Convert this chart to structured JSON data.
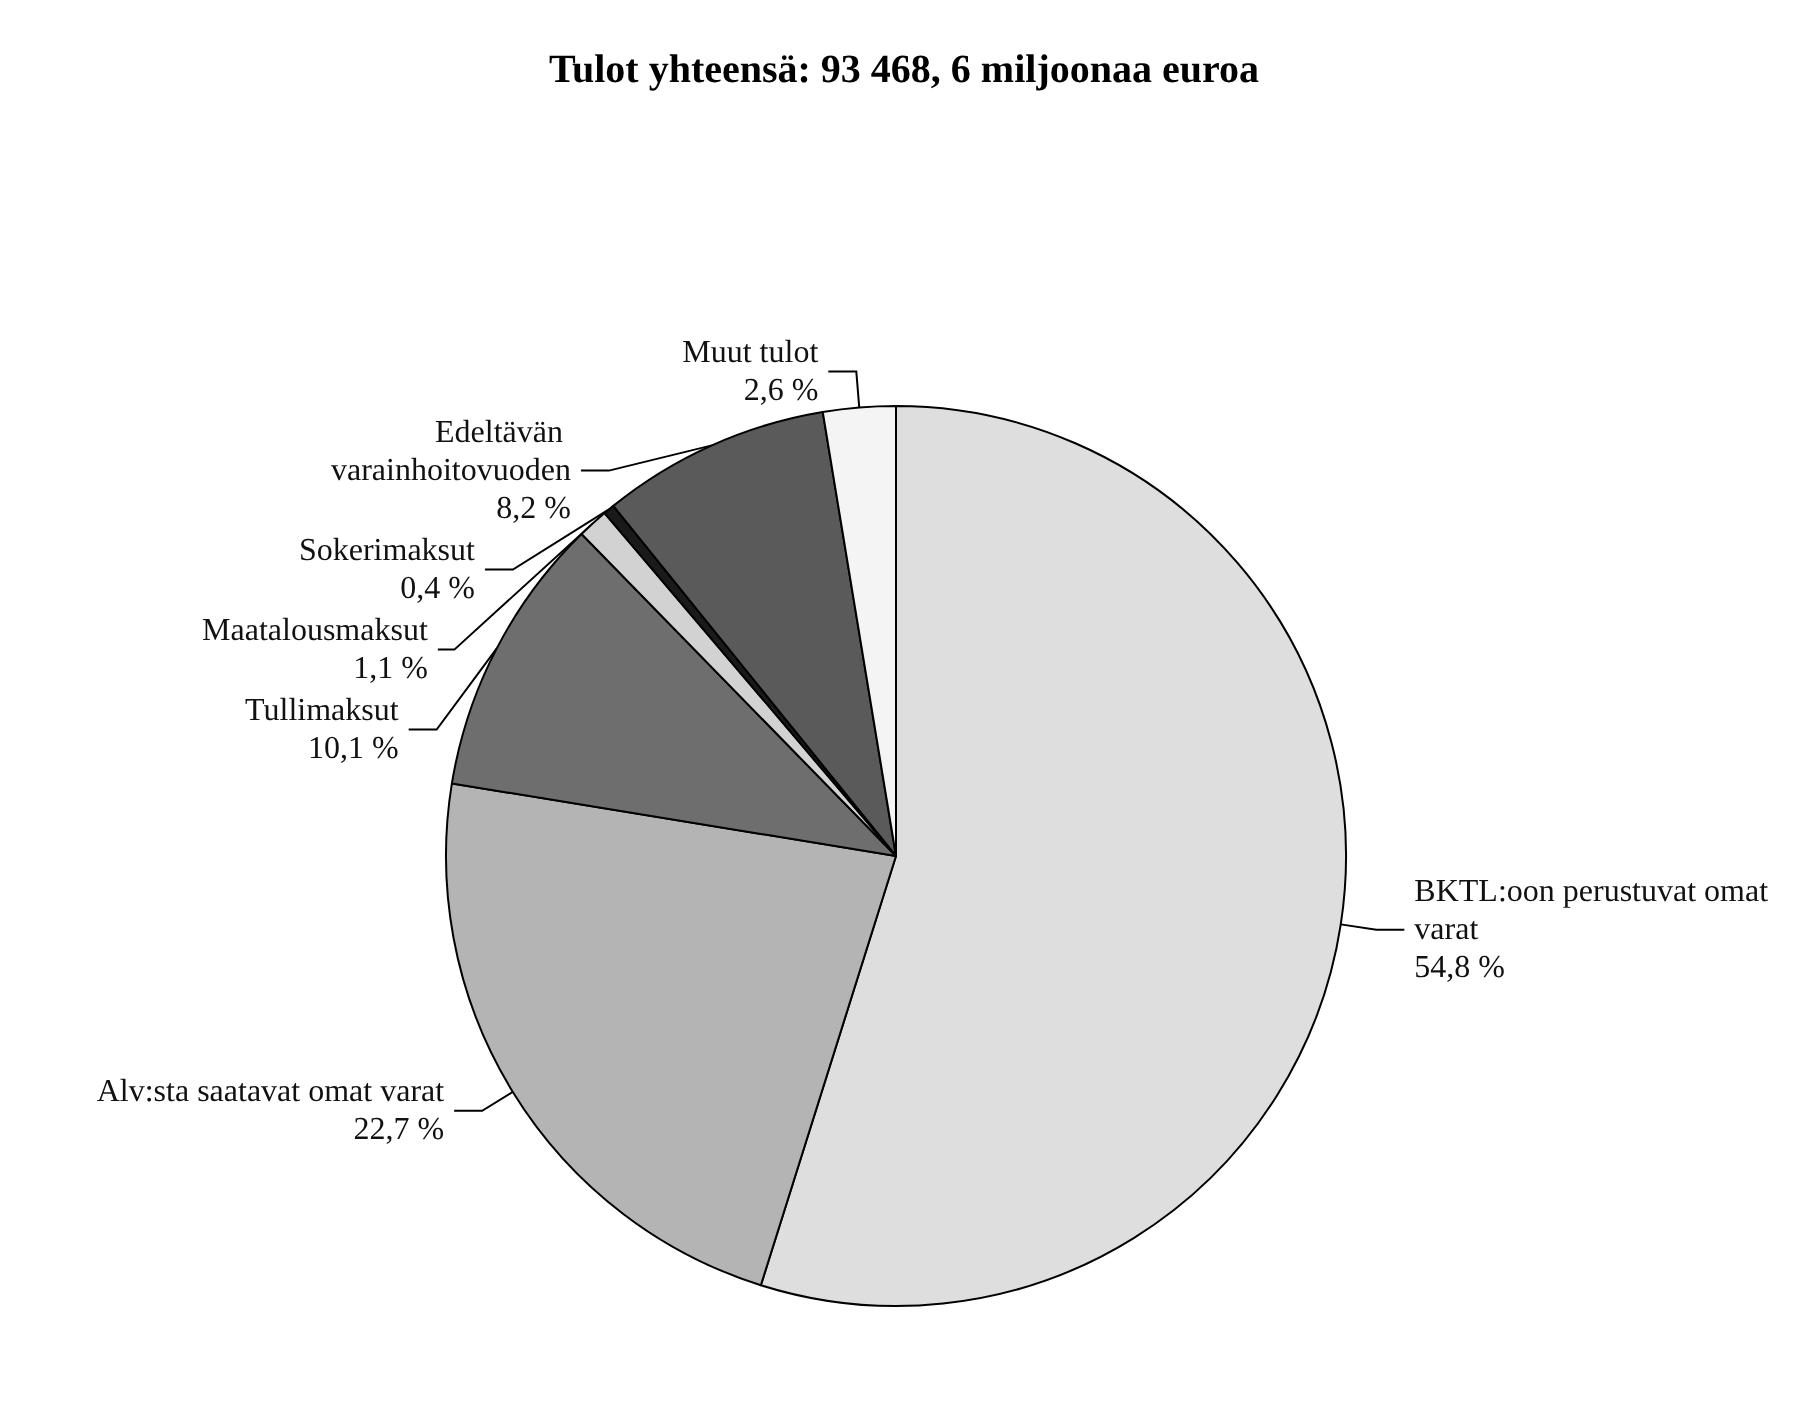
{
  "chart_data": {
    "type": "pie",
    "title": "Tulot yhteensä: 93 468, 6 miljoonaa euroa",
    "categories": [
      "BKTL:oon perustuvat omat varat",
      "Alv:sta saatavat omat varat",
      "Tullimaksut",
      "Maatalousmaksut",
      "Sokerimaksut",
      "Edeltävän varainhoitovuoden",
      "Muut tulot"
    ],
    "values": [
      54.8,
      22.7,
      10.1,
      1.1,
      0.4,
      8.2,
      2.6
    ],
    "value_labels": [
      "54,8 %",
      "22,7 %",
      "10,1 %",
      "1,1 %",
      "0,4 %",
      "8,2 %",
      "2,6 %"
    ],
    "colors": [
      "#dedede",
      "#b4b4b4",
      "#6e6e6e",
      "#d2d2d2",
      "#1a1a1a",
      "#5a5a5a",
      "#f4f4f4"
    ],
    "legend": false
  }
}
